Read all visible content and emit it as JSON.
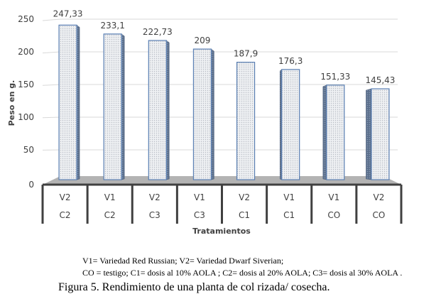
{
  "chart_data": {
    "type": "bar",
    "style": "3d-column",
    "title": "",
    "ylabel": "Peso en g.",
    "xlabel": "Tratamientos",
    "ylim": [
      0,
      250
    ],
    "yticks": [
      "0",
      "50",
      "100",
      "150",
      "200",
      "250"
    ],
    "grid": true,
    "categories": [
      {
        "variety": "V2",
        "dose": "C2"
      },
      {
        "variety": "V1",
        "dose": "C2"
      },
      {
        "variety": "V2",
        "dose": "C3"
      },
      {
        "variety": "V1",
        "dose": "C3"
      },
      {
        "variety": "V2",
        "dose": "C1"
      },
      {
        "variety": "V1",
        "dose": "C1"
      },
      {
        "variety": "V1",
        "dose": "CO"
      },
      {
        "variety": "V2",
        "dose": "CO"
      }
    ],
    "values": [
      247.33,
      233.1,
      222.73,
      209,
      187.9,
      176.3,
      151.33,
      145.43
    ],
    "data_labels": [
      "247,33",
      "233,1",
      "222,73",
      "209",
      "187,9",
      "176,3",
      "151,33",
      "145,43"
    ],
    "colors": {
      "bar_face": "#e6e9ee",
      "bar_edge": "#5a7fb3",
      "bar_side": "#4d5f7a",
      "floor": "#b3b3b3",
      "gridline": "#d9d9d9",
      "axis_text": "#404040",
      "category_border": "#404040"
    }
  },
  "legend_notes": [
    "V1= Variedad Red Russian; V2= Variedad Dwarf Siverian;",
    "CO = testigo; C1= dosis al 10% AOLA ; C2= dosis al 20% AOLA; C3= dosis al 30% AOLA ."
  ],
  "figure_caption": "Figura 5. Rendimiento de una planta de col rizada/ cosecha."
}
